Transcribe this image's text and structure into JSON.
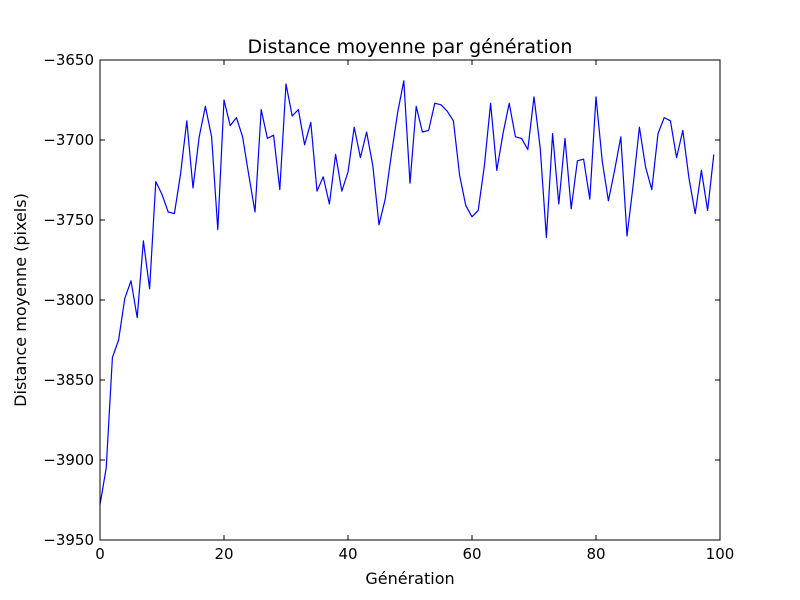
{
  "chart_data": {
    "type": "line",
    "title": "Distance moyenne par génération",
    "xlabel": "Génération",
    "ylabel": "Distance moyenne (pixels)",
    "xlim": [
      0,
      100
    ],
    "ylim": [
      -3950,
      -3650
    ],
    "xticks": [
      0,
      20,
      40,
      60,
      80,
      100
    ],
    "yticks": [
      -3950,
      -3900,
      -3850,
      -3800,
      -3750,
      -3700,
      -3650
    ],
    "xtick_labels": [
      "0",
      "20",
      "40",
      "60",
      "80",
      "100"
    ],
    "ytick_labels": [
      "−3950",
      "−3900",
      "−3850",
      "−3800",
      "−3750",
      "−3700",
      "−3650"
    ],
    "grid": false,
    "legend": "none",
    "series": [
      {
        "color": "#0000ff",
        "x": [
          0,
          1,
          2,
          3,
          4,
          5,
          6,
          7,
          8,
          9,
          10,
          11,
          12,
          13,
          14,
          15,
          16,
          17,
          18,
          19,
          20,
          21,
          22,
          23,
          24,
          25,
          26,
          27,
          28,
          29,
          30,
          31,
          32,
          33,
          34,
          35,
          36,
          37,
          38,
          39,
          40,
          41,
          42,
          43,
          44,
          45,
          46,
          47,
          48,
          49,
          50,
          51,
          52,
          53,
          54,
          55,
          56,
          57,
          58,
          59,
          60,
          61,
          62,
          63,
          64,
          65,
          66,
          67,
          68,
          69,
          70,
          71,
          72,
          73,
          74,
          75,
          76,
          77,
          78,
          79,
          80,
          81,
          82,
          83,
          84,
          85,
          86,
          87,
          88,
          89,
          90,
          91,
          92,
          93,
          94,
          95,
          96,
          97,
          98,
          99
        ],
        "values": [
          -3928,
          -3905,
          -3836,
          -3825,
          -3799,
          -3788,
          -3811,
          -3763,
          -3793,
          -3726,
          -3734,
          -3745,
          -3746,
          -3721,
          -3688,
          -3730,
          -3698,
          -3679,
          -3698,
          -3756,
          -3675,
          -3691,
          -3686,
          -3698,
          -3722,
          -3745,
          -3681,
          -3699,
          -3697,
          -3731,
          -3665,
          -3685,
          -3681,
          -3703,
          -3689,
          -3732,
          -3723,
          -3740,
          -3709,
          -3732,
          -3720,
          -3692,
          -3711,
          -3695,
          -3716,
          -3753,
          -3737,
          -3709,
          -3683,
          -3663,
          -3727,
          -3679,
          -3695,
          -3694,
          -3677,
          -3678,
          -3682,
          -3688,
          -3722,
          -3741,
          -3748,
          -3744,
          -3716,
          -3677,
          -3719,
          -3696,
          -3677,
          -3698,
          -3699,
          -3706,
          -3673,
          -3705,
          -3761,
          -3696,
          -3740,
          -3699,
          -3743,
          -3713,
          -3712,
          -3737,
          -3673,
          -3713,
          -3738,
          -3719,
          -3698,
          -3760,
          -3728,
          -3692,
          -3717,
          -3731,
          -3696,
          -3686,
          -3688,
          -3711,
          -3694,
          -3724,
          -3746,
          -3719,
          -3744,
          -3709
        ]
      }
    ]
  }
}
